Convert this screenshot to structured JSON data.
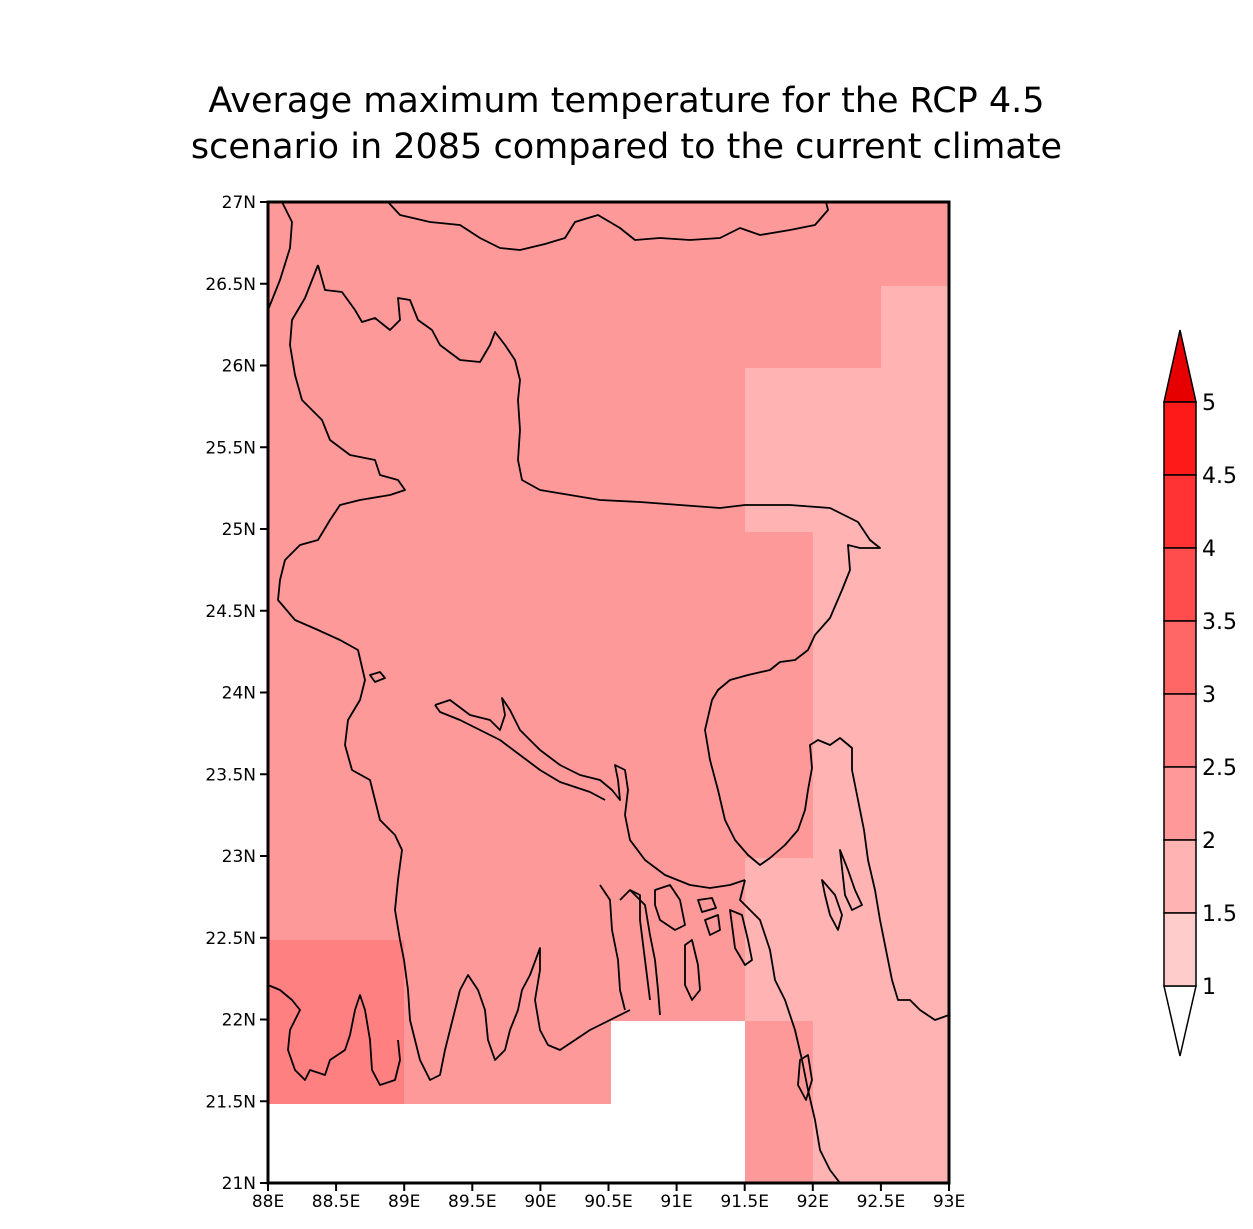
{
  "title": {
    "line1": "Average maximum temperature for the RCP 4.5",
    "line2": "scenario in 2085 compared to the current climate"
  },
  "map": {
    "lon_range": [
      88,
      93
    ],
    "lat_range": [
      21,
      27
    ],
    "x_ticks": [
      "88E",
      "88.5E",
      "89E",
      "89.5E",
      "90E",
      "90.5E",
      "91E",
      "91.5E",
      "92E",
      "92.5E",
      "93E"
    ],
    "y_ticks": [
      "27N",
      "26.5N",
      "26N",
      "25.5N",
      "25N",
      "24.5N",
      "24N",
      "23.5N",
      "23N",
      "22.5N",
      "22N",
      "21.5N",
      "21N"
    ]
  },
  "colorbar": {
    "labels": [
      "5",
      "4.5",
      "4",
      "3.5",
      "3",
      "2.5",
      "2",
      "1.5",
      "1"
    ],
    "colors": [
      "#ff1a1a",
      "#ff3333",
      "#ff4d4d",
      "#ff6666",
      "#ff8080",
      "#ff9999",
      "#ffb3b3",
      "#ffcccc"
    ],
    "over_color": "#e60000",
    "under_color": "#ffffff"
  },
  "colors": {
    "level_2_2_5": "#fe9999",
    "level_1_5_2": "#ffb3b3",
    "level_2_5_3": "#ff8080",
    "missing": "#ffffff"
  }
}
